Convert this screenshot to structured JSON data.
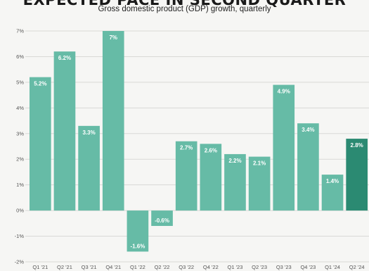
{
  "title": "EXPECTED PACE IN SECOND QUARTER",
  "subtitle": "Gross domestic product (GDP) growth, quarterly",
  "colors": {
    "bar": "#66bba6",
    "highlight": "#2b8a72",
    "grid": "#d9d9d6"
  },
  "chart_data": {
    "type": "bar",
    "title": "",
    "xlabel": "",
    "ylabel": "",
    "ylim": [
      -2,
      7
    ],
    "yticks": [
      "-2%",
      "-1%",
      "0%",
      "1%",
      "2%",
      "3%",
      "4%",
      "5%",
      "6%",
      "7%"
    ],
    "categories": [
      "Q1 '21",
      "Q2 '21",
      "Q3 '21",
      "Q4 '21",
      "Q1 '22",
      "Q2 '22",
      "Q3 '22",
      "Q4 '22",
      "Q1 '23",
      "Q2 '23",
      "Q3 '23",
      "Q4 '23",
      "Q1 '24",
      "Q2 '24"
    ],
    "values": [
      5.2,
      6.2,
      3.3,
      7,
      -1.6,
      -0.6,
      2.7,
      2.6,
      2.2,
      2.1,
      4.9,
      3.4,
      1.4,
      2.8
    ],
    "labels": [
      "5.2%",
      "6.2%",
      "3.3%",
      "7%",
      "-1.6%",
      "-0.6%",
      "2.7%",
      "2.6%",
      "2.2%",
      "2.1%",
      "4.9%",
      "3.4%",
      "1.4%",
      "2.8%"
    ],
    "highlight_index": 13,
    "grid": true
  }
}
